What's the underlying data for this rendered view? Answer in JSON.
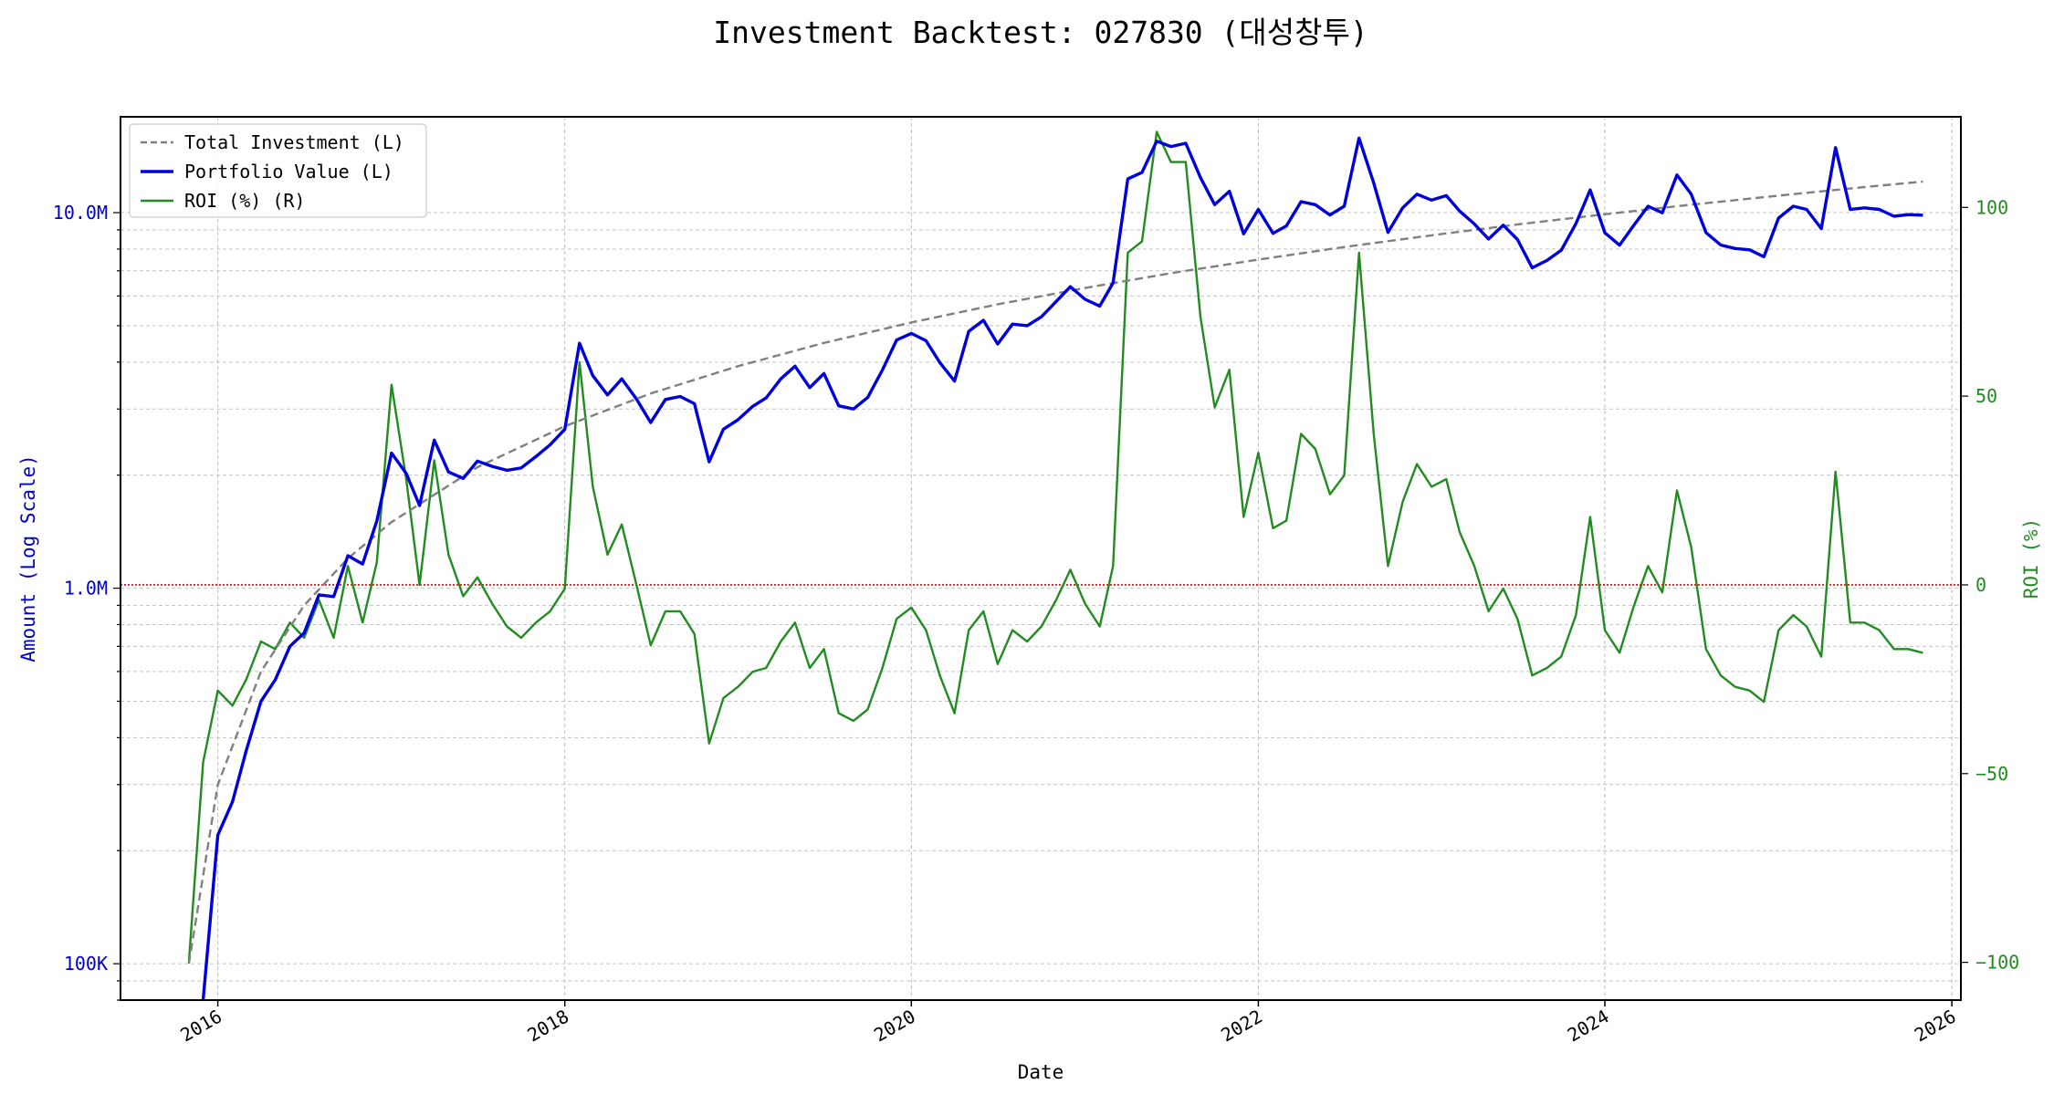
{
  "chart_data": {
    "type": "line",
    "title": "Investment Backtest: 027830 (대성창투)",
    "xlabel": "Date",
    "ylabel_left": "Amount (Log Scale)",
    "ylabel_right": "ROI (%)",
    "x_range": [
      "2015-06-10",
      "2026-01-20"
    ],
    "ylim_left": [
      80000,
      18000000
    ],
    "ylim_right": [
      -110,
      124
    ],
    "left_scale": "log",
    "grid": true,
    "legend_position": "top-left",
    "x_ticks": [
      "2016",
      "2018",
      "2020",
      "2022",
      "2024",
      "2026"
    ],
    "y_ticks_left": [
      {
        "value": 100000,
        "label": "100K"
      },
      {
        "value": 1000000,
        "label": "1.0M"
      },
      {
        "value": 10000000,
        "label": "10.0M"
      }
    ],
    "y_ticks_right": [
      {
        "value": -100,
        "label": "−100"
      },
      {
        "value": -50,
        "label": "−50"
      },
      {
        "value": 0,
        "label": "0"
      },
      {
        "value": 50,
        "label": "50"
      },
      {
        "value": 100,
        "label": "100"
      }
    ],
    "reference_line": {
      "axis": "right",
      "value": 0,
      "style": "dotted",
      "color": "#dd0000"
    },
    "colors": {
      "investment": "#808080",
      "portfolio": "#0000dd",
      "roi": "#228b22",
      "left_axis": "#0000cc",
      "right_axis": "#228b22"
    },
    "series": [
      {
        "name": "Total Investment (L)",
        "axis": "left",
        "style": "dashed",
        "x": [
          "2015-11-01",
          "2016-01-01",
          "2016-04-01",
          "2016-07-01",
          "2016-10-01",
          "2017-01-01",
          "2017-07-01",
          "2018-01-01",
          "2018-07-01",
          "2019-01-01",
          "2019-07-01",
          "2020-01-01",
          "2020-07-01",
          "2021-01-01",
          "2021-07-01",
          "2022-01-01",
          "2022-07-01",
          "2023-01-01",
          "2023-07-01",
          "2024-01-01",
          "2024-07-01",
          "2025-01-01",
          "2025-07-01",
          "2025-11-01"
        ],
        "values": [
          100000,
          300000,
          600000,
          900000,
          1200000,
          1500000,
          2100000,
          2700000,
          3300000,
          3900000,
          4500000,
          5100000,
          5700000,
          6300000,
          6900000,
          7500000,
          8100000,
          8700000,
          9300000,
          9900000,
          10500000,
          11100000,
          11700000,
          12100000
        ]
      },
      {
        "name": "Portfolio Value (L)",
        "axis": "left",
        "style": "solid",
        "x": [
          "2015-12-01",
          "2016-01-01",
          "2016-02-01",
          "2016-03-01",
          "2016-04-01",
          "2016-05-01",
          "2016-06-01",
          "2016-07-01",
          "2016-08-01",
          "2016-09-01",
          "2016-10-01",
          "2016-11-01",
          "2016-12-01",
          "2017-01-01",
          "2017-02-01",
          "2017-03-01",
          "2017-04-01",
          "2017-05-01",
          "2017-06-01",
          "2017-07-01",
          "2017-08-01",
          "2017-09-01",
          "2017-10-01",
          "2017-11-01",
          "2017-12-01",
          "2018-01-01",
          "2018-02-01",
          "2018-03-01",
          "2018-04-01",
          "2018-05-01",
          "2018-06-01",
          "2018-07-01",
          "2018-08-01",
          "2018-09-01",
          "2018-10-01",
          "2018-11-01",
          "2018-12-01",
          "2019-01-01",
          "2019-02-01",
          "2019-03-01",
          "2019-04-01",
          "2019-05-01",
          "2019-06-01",
          "2019-07-01",
          "2019-08-01",
          "2019-09-01",
          "2019-10-01",
          "2019-11-01",
          "2019-12-01",
          "2020-01-01",
          "2020-02-01",
          "2020-03-01",
          "2020-04-01",
          "2020-05-01",
          "2020-06-01",
          "2020-07-01",
          "2020-08-01",
          "2020-09-01",
          "2020-10-01",
          "2020-11-01",
          "2020-12-01",
          "2021-01-01",
          "2021-02-01",
          "2021-03-01",
          "2021-04-01",
          "2021-05-01",
          "2021-06-01",
          "2021-07-01",
          "2021-08-01",
          "2021-09-01",
          "2021-10-01",
          "2021-11-01",
          "2021-12-01",
          "2022-01-01",
          "2022-02-01",
          "2022-03-01",
          "2022-04-01",
          "2022-05-01",
          "2022-06-01",
          "2022-07-01",
          "2022-08-01",
          "2022-09-01",
          "2022-10-01",
          "2022-11-01",
          "2022-12-01",
          "2023-01-01",
          "2023-02-01",
          "2023-03-01",
          "2023-04-01",
          "2023-05-01",
          "2023-06-01",
          "2023-07-01",
          "2023-08-01",
          "2023-09-01",
          "2023-10-01",
          "2023-11-01",
          "2023-12-01",
          "2024-01-01",
          "2024-02-01",
          "2024-03-01",
          "2024-04-01",
          "2024-05-01",
          "2024-06-01",
          "2024-07-01",
          "2024-08-01",
          "2024-09-01",
          "2024-10-01",
          "2024-11-01",
          "2024-12-01",
          "2025-01-01",
          "2025-02-01",
          "2025-03-01",
          "2025-04-01",
          "2025-05-01",
          "2025-06-01",
          "2025-07-01",
          "2025-08-01",
          "2025-09-01",
          "2025-10-01",
          "2025-11-01"
        ],
        "values": [
          60000,
          220000,
          270000,
          370000,
          500000,
          570000,
          700000,
          760000,
          960000,
          950000,
          1220000,
          1160000,
          1510000,
          2290000,
          2020000,
          1660000,
          2480000,
          2040000,
          1960000,
          2180000,
          2110000,
          2060000,
          2090000,
          2240000,
          2410000,
          2650000,
          4490000,
          3680000,
          3270000,
          3610000,
          3190000,
          2760000,
          3180000,
          3240000,
          3100000,
          2170000,
          2650000,
          2810000,
          3050000,
          3210000,
          3610000,
          3900000,
          3420000,
          3730000,
          3060000,
          3000000,
          3220000,
          3810000,
          4580000,
          4770000,
          4560000,
          3990000,
          3560000,
          4830000,
          5170000,
          4470000,
          5050000,
          5000000,
          5280000,
          5800000,
          6350000,
          5880000,
          5640000,
          6500000,
          12300000,
          12800000,
          15500000,
          15000000,
          15300000,
          12400000,
          10500000,
          11400000,
          8780000,
          10200000,
          8810000,
          9220000,
          10700000,
          10500000,
          9860000,
          10400000,
          15800000,
          12000000,
          8860000,
          10300000,
          11200000,
          10800000,
          11100000,
          10100000,
          9330000,
          8510000,
          9260000,
          8480000,
          7130000,
          7460000,
          7940000,
          9350000,
          11500000,
          8840000,
          8190000,
          9220000,
          10400000,
          9990000,
          12600000,
          11200000,
          8850000,
          8200000,
          8030000,
          7960000,
          7630000,
          9680000,
          10400000,
          10200000,
          9070000,
          14900000,
          10200000,
          10300000,
          10200000,
          9780000,
          9880000,
          9850000
        ]
      },
      {
        "name": "ROI (%) (R)",
        "axis": "right",
        "style": "solid",
        "x": [
          "2015-11-01",
          "2015-12-01",
          "2016-01-01",
          "2016-02-01",
          "2016-03-01",
          "2016-04-01",
          "2016-05-01",
          "2016-06-01",
          "2016-07-01",
          "2016-08-01",
          "2016-09-01",
          "2016-10-01",
          "2016-11-01",
          "2016-12-01",
          "2017-01-01",
          "2017-02-01",
          "2017-03-01",
          "2017-04-01",
          "2017-05-01",
          "2017-06-01",
          "2017-07-01",
          "2017-08-01",
          "2017-09-01",
          "2017-10-01",
          "2017-11-01",
          "2017-12-01",
          "2018-01-01",
          "2018-02-01",
          "2018-03-01",
          "2018-04-01",
          "2018-05-01",
          "2018-06-01",
          "2018-07-01",
          "2018-08-01",
          "2018-09-01",
          "2018-10-01",
          "2018-11-01",
          "2018-12-01",
          "2019-01-01",
          "2019-02-01",
          "2019-03-01",
          "2019-04-01",
          "2019-05-01",
          "2019-06-01",
          "2019-07-01",
          "2019-08-01",
          "2019-09-01",
          "2019-10-01",
          "2019-11-01",
          "2019-12-01",
          "2020-01-01",
          "2020-02-01",
          "2020-03-01",
          "2020-04-01",
          "2020-05-01",
          "2020-06-01",
          "2020-07-01",
          "2020-08-01",
          "2020-09-01",
          "2020-10-01",
          "2020-11-01",
          "2020-12-01",
          "2021-01-01",
          "2021-02-01",
          "2021-03-01",
          "2021-04-01",
          "2021-05-01",
          "2021-06-01",
          "2021-07-01",
          "2021-08-01",
          "2021-09-01",
          "2021-10-01",
          "2021-11-01",
          "2021-12-01",
          "2022-01-01",
          "2022-02-01",
          "2022-03-01",
          "2022-04-01",
          "2022-05-01",
          "2022-06-01",
          "2022-07-01",
          "2022-08-01",
          "2022-09-01",
          "2022-10-01",
          "2022-11-01",
          "2022-12-01",
          "2023-01-01",
          "2023-02-01",
          "2023-03-01",
          "2023-04-01",
          "2023-05-01",
          "2023-06-01",
          "2023-07-01",
          "2023-08-01",
          "2023-09-01",
          "2023-10-01",
          "2023-11-01",
          "2023-12-01",
          "2024-01-01",
          "2024-02-01",
          "2024-03-01",
          "2024-04-01",
          "2024-05-01",
          "2024-06-01",
          "2024-07-01",
          "2024-08-01",
          "2024-09-01",
          "2024-10-01",
          "2024-11-01",
          "2024-12-01",
          "2025-01-01",
          "2025-02-01",
          "2025-03-01",
          "2025-04-01",
          "2025-05-01",
          "2025-06-01",
          "2025-07-01",
          "2025-08-01",
          "2025-09-01",
          "2025-10-01",
          "2025-11-01"
        ],
        "values": [
          -100,
          -47,
          -28,
          -32,
          -25,
          -15,
          -17,
          -10,
          -14,
          -4,
          -14,
          5,
          -10,
          6,
          53,
          28,
          0,
          33,
          8,
          -3,
          2,
          -5,
          -11,
          -14,
          -10,
          -7,
          -1,
          59,
          26,
          8,
          16,
          0,
          -16,
          -7,
          -7,
          -13,
          -42,
          -30,
          -27,
          -23,
          -22,
          -15,
          -10,
          -22,
          -17,
          -34,
          -36,
          -33,
          -22,
          -9,
          -6,
          -12,
          -24,
          -34,
          -12,
          -7,
          -21,
          -12,
          -15,
          -11,
          -4,
          4,
          -5,
          -11,
          5,
          88,
          91,
          120,
          112,
          112,
          71,
          47,
          57,
          18,
          35,
          15,
          17,
          40,
          36,
          24,
          29,
          88,
          40,
          5,
          22,
          32,
          26,
          28,
          14,
          5,
          -7,
          -1,
          -9,
          -24,
          -22,
          -19,
          -8,
          18,
          -12,
          -18,
          -6,
          5,
          -2,
          25,
          10,
          -17,
          -24,
          -27,
          -28,
          -31,
          -12,
          -8,
          -11,
          -19,
          30,
          -10,
          -10,
          -12,
          -17,
          -17,
          -18
        ]
      }
    ]
  }
}
